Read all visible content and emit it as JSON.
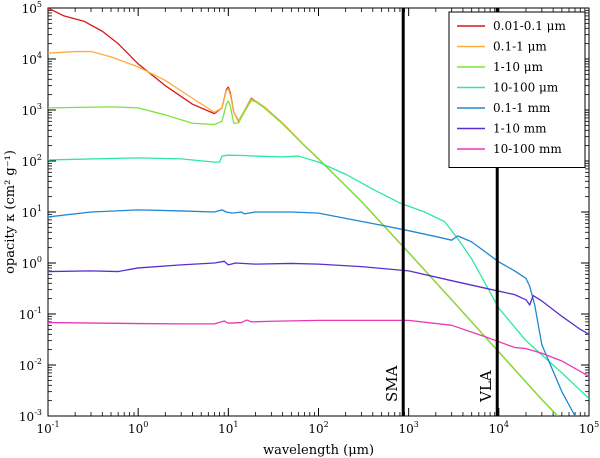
{
  "chart_data": {
    "type": "line",
    "x_scale": "log",
    "y_scale": "log",
    "xlim": [
      0.1,
      100000
    ],
    "ylim": [
      0.001,
      100000
    ],
    "xlabel": "wavelength (μm)",
    "ylabel": "opacity κ (cm² g⁻¹)",
    "x_ticks": [
      {
        "base": "10",
        "exp": "-1"
      },
      {
        "base": "10",
        "exp": "0"
      },
      {
        "base": "10",
        "exp": "1"
      },
      {
        "base": "10",
        "exp": "2"
      },
      {
        "base": "10",
        "exp": "3"
      },
      {
        "base": "10",
        "exp": "4"
      },
      {
        "base": "10",
        "exp": "5"
      }
    ],
    "y_ticks": [
      {
        "base": "10",
        "exp": "-3"
      },
      {
        "base": "10",
        "exp": "-2"
      },
      {
        "base": "10",
        "exp": "-1"
      },
      {
        "base": "10",
        "exp": "0"
      },
      {
        "base": "10",
        "exp": "1"
      },
      {
        "base": "10",
        "exp": "2"
      },
      {
        "base": "10",
        "exp": "3"
      },
      {
        "base": "10",
        "exp": "4"
      },
      {
        "base": "10",
        "exp": "5"
      }
    ],
    "legend_position": "top-right",
    "vertical_lines": [
      {
        "label": "SMA",
        "x": 870
      },
      {
        "label": "VLA",
        "x": 9600
      }
    ],
    "series": [
      {
        "name": "0.01-0.1 μm",
        "color": "#d7191c",
        "points": [
          [
            0.1,
            100000
          ],
          [
            0.15,
            70000
          ],
          [
            0.25,
            55000
          ],
          [
            0.4,
            35000
          ],
          [
            0.6,
            20000
          ],
          [
            1,
            8000
          ],
          [
            2,
            3000
          ],
          [
            4,
            1300
          ],
          [
            7,
            850
          ],
          [
            8.5,
            1100
          ],
          [
            9.5,
            2500
          ],
          [
            10,
            2800
          ],
          [
            10.5,
            2200
          ],
          [
            11.5,
            900
          ],
          [
            13,
            600
          ],
          [
            15,
            950
          ],
          [
            18,
            1700
          ],
          [
            20,
            1500
          ],
          [
            25,
            1150
          ],
          [
            40,
            550
          ],
          [
            70,
            200
          ],
          [
            100,
            110
          ],
          [
            300,
            16
          ],
          [
            1000,
            1.6
          ],
          [
            3000,
            0.19
          ],
          [
            10000,
            0.018
          ],
          [
            30000,
            0.0021
          ],
          [
            45000,
            0.001
          ]
        ]
      },
      {
        "name": "0.1-1 μm",
        "color": "#fdae3a",
        "points": [
          [
            0.1,
            13000
          ],
          [
            0.2,
            14000
          ],
          [
            0.3,
            14000
          ],
          [
            0.5,
            11000
          ],
          [
            1,
            7000
          ],
          [
            2,
            3800
          ],
          [
            4,
            1700
          ],
          [
            7,
            900
          ],
          [
            8.5,
            1100
          ],
          [
            9.5,
            2400
          ],
          [
            10,
            2600
          ],
          [
            10.5,
            2000
          ],
          [
            11.5,
            900
          ],
          [
            13,
            620
          ],
          [
            15,
            950
          ],
          [
            18,
            1650
          ],
          [
            20,
            1500
          ],
          [
            25,
            1150
          ],
          [
            40,
            550
          ],
          [
            70,
            200
          ],
          [
            100,
            110
          ],
          [
            300,
            16
          ],
          [
            1000,
            1.6
          ],
          [
            3000,
            0.19
          ],
          [
            10000,
            0.018
          ],
          [
            30000,
            0.0021
          ],
          [
            45000,
            0.001
          ]
        ]
      },
      {
        "name": "1-10 μm",
        "color": "#7ce33c",
        "points": [
          [
            0.1,
            1100
          ],
          [
            0.5,
            1150
          ],
          [
            1,
            1100
          ],
          [
            2,
            800
          ],
          [
            4,
            550
          ],
          [
            7,
            520
          ],
          [
            8.5,
            600
          ],
          [
            9.5,
            1300
          ],
          [
            10,
            1500
          ],
          [
            10.5,
            1200
          ],
          [
            11.5,
            550
          ],
          [
            13,
            560
          ],
          [
            15,
            900
          ],
          [
            18,
            1550
          ],
          [
            20,
            1450
          ],
          [
            25,
            1100
          ],
          [
            40,
            530
          ],
          [
            70,
            200
          ],
          [
            100,
            110
          ],
          [
            300,
            16
          ],
          [
            1000,
            1.6
          ],
          [
            3000,
            0.19
          ],
          [
            10000,
            0.018
          ],
          [
            30000,
            0.0021
          ],
          [
            45000,
            0.001
          ]
        ]
      },
      {
        "name": "10-100 μm",
        "color": "#2de8a0",
        "points": [
          [
            0.1,
            105
          ],
          [
            1,
            115
          ],
          [
            3,
            110
          ],
          [
            7,
            95
          ],
          [
            8,
            95
          ],
          [
            8.5,
            125
          ],
          [
            10,
            130
          ],
          [
            15,
            128
          ],
          [
            20,
            125
          ],
          [
            40,
            120
          ],
          [
            60,
            125
          ],
          [
            100,
            95
          ],
          [
            200,
            55
          ],
          [
            400,
            28
          ],
          [
            800,
            15
          ],
          [
            1500,
            10
          ],
          [
            2500,
            6.5
          ],
          [
            3500,
            3
          ],
          [
            5000,
            1.2
          ],
          [
            10000,
            0.13
          ],
          [
            20000,
            0.03
          ],
          [
            50000,
            0.007
          ],
          [
            100000,
            0.0022
          ]
        ]
      },
      {
        "name": "0.1-1 mm",
        "color": "#1f88d0",
        "points": [
          [
            0.1,
            8
          ],
          [
            0.3,
            10
          ],
          [
            1,
            11
          ],
          [
            3,
            10.5
          ],
          [
            7,
            10
          ],
          [
            8.5,
            11
          ],
          [
            9.5,
            10
          ],
          [
            11,
            9.5
          ],
          [
            14,
            10
          ],
          [
            15,
            9.2
          ],
          [
            20,
            10
          ],
          [
            50,
            10
          ],
          [
            100,
            9.5
          ],
          [
            200,
            7.5
          ],
          [
            500,
            5.5
          ],
          [
            1000,
            4.3
          ],
          [
            2000,
            3.3
          ],
          [
            3000,
            2.8
          ],
          [
            3500,
            3.4
          ],
          [
            5000,
            2.6
          ],
          [
            10000,
            1.05
          ],
          [
            15000,
            0.7
          ],
          [
            20000,
            0.5
          ],
          [
            22000,
            0.35
          ],
          [
            25000,
            0.15
          ],
          [
            30000,
            0.025
          ],
          [
            50000,
            0.003
          ],
          [
            70000,
            0.001
          ]
        ]
      },
      {
        "name": "1-10 mm",
        "color": "#5a2dd2",
        "points": [
          [
            0.1,
            0.68
          ],
          [
            0.3,
            0.7
          ],
          [
            0.6,
            0.68
          ],
          [
            1,
            0.8
          ],
          [
            3,
            0.92
          ],
          [
            7,
            1.0
          ],
          [
            9,
            1.08
          ],
          [
            10,
            0.92
          ],
          [
            12,
            1.0
          ],
          [
            20,
            0.95
          ],
          [
            50,
            0.98
          ],
          [
            100,
            0.95
          ],
          [
            300,
            0.85
          ],
          [
            1000,
            0.7
          ],
          [
            3000,
            0.45
          ],
          [
            10000,
            0.28
          ],
          [
            15000,
            0.24
          ],
          [
            20000,
            0.19
          ],
          [
            22000,
            0.15
          ],
          [
            24000,
            0.23
          ],
          [
            30000,
            0.18
          ],
          [
            50000,
            0.09
          ],
          [
            80000,
            0.05
          ],
          [
            100000,
            0.04
          ]
        ]
      },
      {
        "name": "10-100 mm",
        "color": "#e838b8",
        "points": [
          [
            0.1,
            0.068
          ],
          [
            1,
            0.065
          ],
          [
            3,
            0.064
          ],
          [
            7,
            0.064
          ],
          [
            9,
            0.073
          ],
          [
            10,
            0.066
          ],
          [
            14,
            0.068
          ],
          [
            16,
            0.076
          ],
          [
            18,
            0.07
          ],
          [
            30,
            0.072
          ],
          [
            100,
            0.075
          ],
          [
            1000,
            0.075
          ],
          [
            3000,
            0.06
          ],
          [
            7000,
            0.036
          ],
          [
            15000,
            0.022
          ],
          [
            20000,
            0.021
          ],
          [
            30000,
            0.017
          ],
          [
            50000,
            0.012
          ],
          [
            100000,
            0.006
          ]
        ]
      }
    ]
  }
}
